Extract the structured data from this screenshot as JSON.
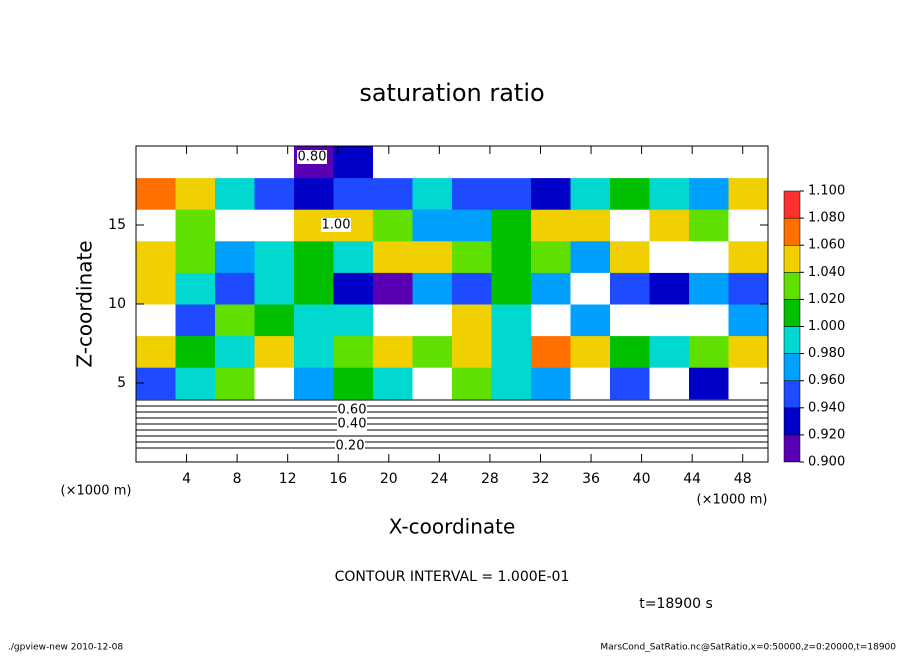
{
  "chart_data": {
    "type": "heatmap",
    "title": "saturation ratio",
    "x_label": "X-coordinate",
    "y_label": "Z-coordinate",
    "x_unit": "(×1000 m)",
    "y_unit": "(×1000 m)",
    "xlim": [
      0,
      50
    ],
    "ylim": [
      0,
      20
    ],
    "xticks": [
      4,
      8,
      12,
      16,
      20,
      24,
      28,
      32,
      36,
      40,
      44,
      48
    ],
    "yticks": [
      5,
      10,
      15
    ],
    "z": [
      [
        0.2,
        0.2,
        0.2,
        0.2,
        0.2,
        0.2,
        0.2,
        0.2,
        0.2,
        0.2,
        0.2,
        0.2,
        0.2,
        0.2,
        0.2,
        0.2
      ],
      [
        0.6,
        0.6,
        0.6,
        0.6,
        0.6,
        0.6,
        0.6,
        0.6,
        0.6,
        0.6,
        0.6,
        0.6,
        0.6,
        0.6,
        0.6,
        0.6
      ],
      [
        0.96,
        1.0,
        1.04,
        0.85,
        0.98,
        1.02,
        1.0,
        0.85,
        1.03,
        1.0,
        0.97,
        0.85,
        0.95,
        0.85,
        0.93,
        0.85
      ],
      [
        1.06,
        1.02,
        1.0,
        1.05,
        1.0,
        1.03,
        1.06,
        1.04,
        1.05,
        1.0,
        1.07,
        1.06,
        1.02,
        1.0,
        1.04,
        1.06
      ],
      [
        0.85,
        0.96,
        1.03,
        1.02,
        0.99,
        1.0,
        0.85,
        0.85,
        1.05,
        1.0,
        0.85,
        0.98,
        0.85,
        0.85,
        0.85,
        0.97
      ],
      [
        1.05,
        1.0,
        0.95,
        1.0,
        1.01,
        0.94,
        0.92,
        0.98,
        0.95,
        1.01,
        0.98,
        0.85,
        0.95,
        0.94,
        0.98,
        0.96
      ],
      [
        1.06,
        1.04,
        0.98,
        1.0,
        1.02,
        1.0,
        1.05,
        1.06,
        1.04,
        1.01,
        1.04,
        0.98,
        1.06,
        0.85,
        0.85,
        1.05
      ],
      [
        0.85,
        1.04,
        0.85,
        0.85,
        1.05,
        1.05,
        1.03,
        0.97,
        0.98,
        1.02,
        1.05,
        1.06,
        0.85,
        1.05,
        1.04,
        0.85
      ],
      [
        1.07,
        1.05,
        1.0,
        0.95,
        0.93,
        0.96,
        0.95,
        1.0,
        0.96,
        0.95,
        0.94,
        1.0,
        1.02,
        1.0,
        0.97,
        1.05
      ],
      [
        0.8,
        0.8,
        0.8,
        0.85,
        0.92,
        0.93,
        0.85,
        0.8,
        0.8,
        0.8,
        0.8,
        0.8,
        0.8,
        0.8,
        0.8,
        0.8
      ]
    ],
    "colorbar": {
      "ticks": [
        {
          "value": 0.9,
          "label": "0.900"
        },
        {
          "value": 0.92,
          "label": "0.920"
        },
        {
          "value": 0.94,
          "label": "0.940"
        },
        {
          "value": 0.96,
          "label": "0.960"
        },
        {
          "value": 0.98,
          "label": "0.980"
        },
        {
          "value": 1.0,
          "label": "1.000"
        },
        {
          "value": 1.02,
          "label": "1.020"
        },
        {
          "value": 1.04,
          "label": "1.040"
        },
        {
          "value": 1.06,
          "label": "1.060"
        },
        {
          "value": 1.08,
          "label": "1.080"
        },
        {
          "value": 1.1,
          "label": "1.100"
        }
      ],
      "colors": [
        "#5a00b4",
        "#0000c8",
        "#1e4bff",
        "#00a0ff",
        "#00d8d0",
        "#00c000",
        "#60e000",
        "#f0d000",
        "#ff7000",
        "#ff3030"
      ]
    },
    "contour_labels": [
      "0.20",
      "0.40",
      "0.60",
      "0.80",
      "1.00"
    ],
    "contour_interval": "CONTOUR INTERVAL = 1.000E-01",
    "time": "t=18900 s",
    "footer_left": "./gpview-new  2010-12-08",
    "footer_right": "MarsCond_SatRatio.nc@SatRatio,x=0:50000,z=0:20000,t=18900"
  }
}
